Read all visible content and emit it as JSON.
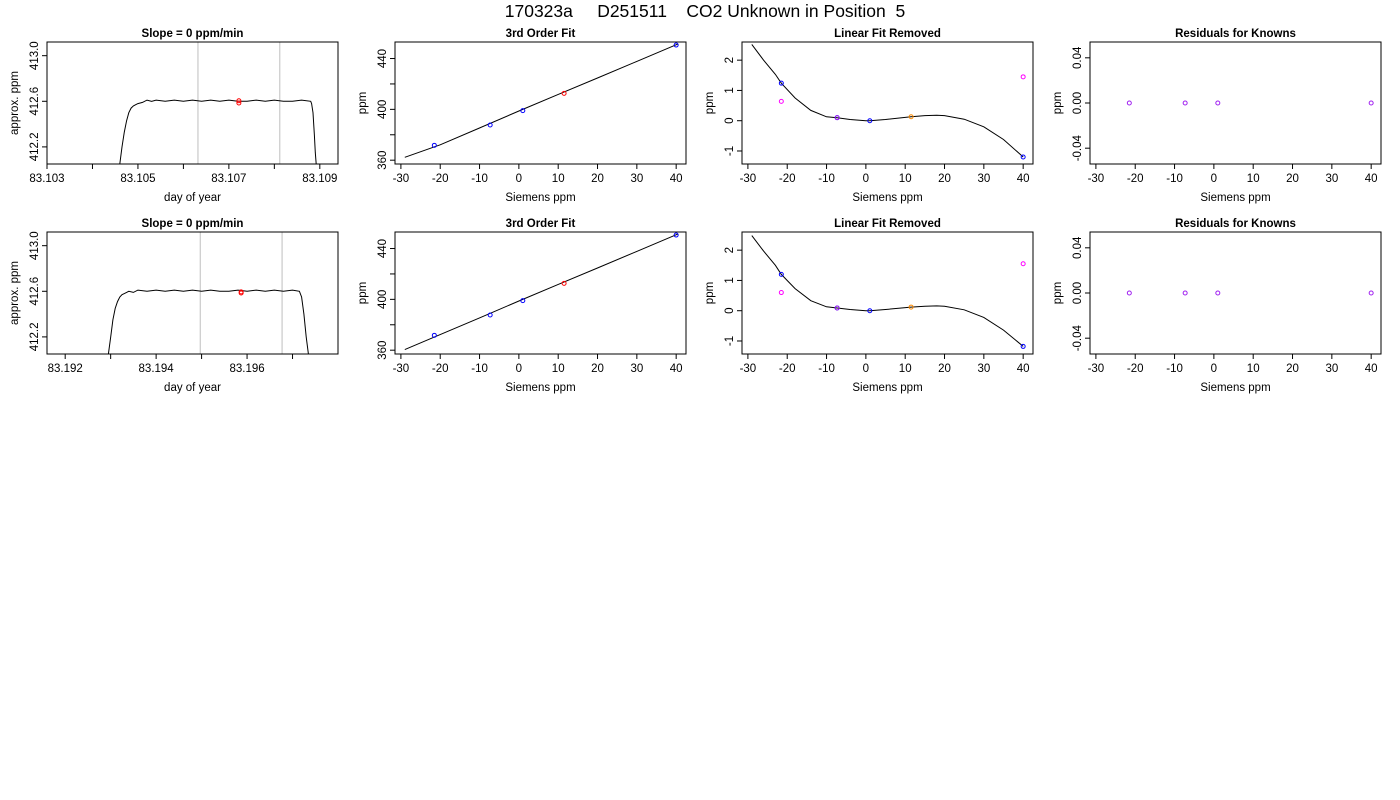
{
  "header": {
    "title": "170323a     D251511    CO2 Unknown in Position  5"
  },
  "colors": {
    "trace": "#000000",
    "flag_lines": "#bebebe",
    "unknown_point": "#ff0000",
    "known_points": "#0000ff",
    "residual_points": "#a020f0",
    "raw_points": "#ff00ff",
    "unknown_linear": "#ff8c00"
  },
  "chart_data": [
    {
      "type": "line",
      "row": 0,
      "col": 0,
      "title": "Slope =  0  ppm/min",
      "xlabel": "day of year",
      "ylabel": "approx. ppm",
      "xlim": [
        83.103,
        83.1094
      ],
      "ylim": [
        412.05,
        413.12
      ],
      "xticks": [
        83.103,
        83.104,
        83.105,
        83.106,
        83.107,
        83.108,
        83.109
      ],
      "xtick_labels": [
        "83.103",
        "",
        "83.105",
        "",
        "83.107",
        "",
        "83.109"
      ],
      "yticks": [
        412.2,
        412.6,
        413.0
      ],
      "ytick_labels": [
        "412.2",
        "412.6",
        "413.0"
      ],
      "vlines": [
        83.10632,
        83.10812
      ],
      "series": [
        {
          "x": [
            83.1046,
            83.10465,
            83.1047,
            83.10475,
            83.1048,
            83.10485,
            83.1049,
            83.10495,
            83.105,
            83.10505,
            83.1051,
            83.1052,
            83.1053,
            83.1054,
            83.1056,
            83.1058,
            83.106,
            83.1062,
            83.1064,
            83.1066,
            83.1068,
            83.107,
            83.1072,
            83.1074,
            83.1076,
            83.1078,
            83.108,
            83.1082,
            83.1084,
            83.1086,
            83.1088,
            83.10882,
            83.10885,
            83.10888,
            83.1089,
            83.10892
          ],
          "y": [
            412.05,
            412.2,
            412.33,
            412.43,
            412.5,
            412.54,
            412.56,
            412.57,
            412.58,
            412.585,
            412.59,
            412.61,
            412.6,
            412.61,
            412.6,
            412.61,
            412.6,
            412.61,
            412.6,
            412.61,
            412.6,
            412.61,
            412.6,
            412.6,
            412.61,
            412.6,
            412.61,
            412.6,
            412.6,
            412.61,
            412.6,
            412.58,
            412.5,
            412.3,
            412.15,
            412.05
          ]
        }
      ],
      "points": [
        {
          "x": 83.10722,
          "y": 412.605,
          "color": "unknown_point"
        },
        {
          "x": 83.10722,
          "y": 412.585,
          "color": "unknown_point"
        }
      ]
    },
    {
      "type": "scatter",
      "row": 0,
      "col": 1,
      "title": "3rd Order Fit",
      "xlabel": "Siemens ppm",
      "ylabel": "ppm",
      "xlim": [
        -31.5,
        42.5
      ],
      "ylim": [
        357,
        453
      ],
      "xticks": [
        -30,
        -20,
        -10,
        0,
        10,
        20,
        30,
        40
      ],
      "yticks": [
        360,
        380,
        400,
        420,
        440
      ],
      "ytick_labels": [
        "360",
        "",
        "400",
        "",
        "440"
      ],
      "fit_x": [
        -29,
        -20,
        -10,
        0,
        10,
        20,
        30,
        40.5
      ],
      "fit_y": [
        362.3,
        372.1,
        385.3,
        398.7,
        411.8,
        424.7,
        437.7,
        451.5
      ],
      "points": [
        {
          "x": -21.5,
          "y": 371.7,
          "color": "known_points"
        },
        {
          "x": -7.3,
          "y": 387.7,
          "color": "known_points"
        },
        {
          "x": 1.0,
          "y": 399.0,
          "color": "known_points"
        },
        {
          "x": 40.0,
          "y": 450.6,
          "color": "known_points"
        },
        {
          "x": 11.5,
          "y": 412.6,
          "color": "unknown_point"
        }
      ]
    },
    {
      "type": "scatter",
      "row": 0,
      "col": 2,
      "title": "Linear Fit Removed",
      "xlabel": "Siemens ppm",
      "ylabel": "ppm",
      "xlim": [
        -31.5,
        42.5
      ],
      "ylim": [
        -1.43,
        2.6
      ],
      "xticks": [
        -30,
        -20,
        -10,
        0,
        10,
        20,
        30,
        40
      ],
      "yticks": [
        -1,
        0,
        1,
        2
      ],
      "fit_x": [
        -29,
        -26,
        -23,
        -21.5,
        -18,
        -14,
        -10,
        -7.3,
        -4,
        0,
        1,
        5,
        11.5,
        15,
        18,
        20,
        25,
        30,
        35,
        40
      ],
      "fit_y": [
        2.52,
        2.0,
        1.53,
        1.24,
        0.75,
        0.34,
        0.13,
        0.1,
        0.04,
        0.0,
        0.0,
        0.04,
        0.13,
        0.17,
        0.18,
        0.17,
        0.05,
        -0.2,
        -0.62,
        -1.2
      ],
      "points": [
        {
          "x": -21.5,
          "y": 1.24,
          "color": "known_points"
        },
        {
          "x": -7.3,
          "y": 0.1,
          "color": "known_points"
        },
        {
          "x": 1.0,
          "y": 0.0,
          "color": "known_points"
        },
        {
          "x": 40.0,
          "y": -1.2,
          "color": "known_points"
        },
        {
          "x": -7.3,
          "y": 0.1,
          "color": "residual_points"
        },
        {
          "x": -21.5,
          "y": 0.64,
          "color": "raw_points"
        },
        {
          "x": 40.0,
          "y": 1.45,
          "color": "raw_points"
        },
        {
          "x": 11.5,
          "y": 0.13,
          "color": "unknown_linear"
        }
      ]
    },
    {
      "type": "scatter",
      "row": 0,
      "col": 3,
      "title": "Residuals for Knowns",
      "xlabel": "Siemens ppm",
      "ylabel": "ppm",
      "xlim": [
        -31.5,
        42.5
      ],
      "ylim": [
        -0.054,
        0.054
      ],
      "xticks": [
        -30,
        -20,
        -10,
        0,
        10,
        20,
        30,
        40
      ],
      "yticks": [
        -0.04,
        0.0,
        0.04
      ],
      "ytick_labels": [
        "-0.04",
        "0.00",
        "0.04"
      ],
      "points": [
        {
          "x": -21.5,
          "y": 0.0,
          "color": "residual_points"
        },
        {
          "x": -7.3,
          "y": 0.0,
          "color": "residual_points"
        },
        {
          "x": 1.0,
          "y": 0.0,
          "color": "residual_points"
        },
        {
          "x": 40.0,
          "y": 0.0,
          "color": "residual_points"
        }
      ]
    },
    {
      "type": "line",
      "row": 1,
      "col": 0,
      "title": "Slope =  0  ppm/min",
      "xlabel": "day of year",
      "ylabel": "approx. ppm",
      "xlim": [
        83.1916,
        83.198
      ],
      "ylim": [
        412.05,
        413.12
      ],
      "xticks": [
        83.192,
        83.193,
        83.194,
        83.195,
        83.196,
        83.197
      ],
      "xtick_labels": [
        "83.192",
        "",
        "83.194",
        "",
        "83.196",
        ""
      ],
      "yticks": [
        412.2,
        412.6,
        413.0
      ],
      "ytick_labels": [
        "412.2",
        "412.6",
        "413.0"
      ],
      "vlines": [
        83.19497,
        83.19677
      ],
      "series": [
        {
          "x": [
            83.19295,
            83.193,
            83.19305,
            83.1931,
            83.19315,
            83.1932,
            83.19325,
            83.1933,
            83.19335,
            83.1934,
            83.1935,
            83.1936,
            83.1938,
            83.194,
            83.1942,
            83.1944,
            83.1946,
            83.1948,
            83.195,
            83.1952,
            83.1954,
            83.1956,
            83.1958,
            83.196,
            83.1962,
            83.1964,
            83.1966,
            83.1968,
            83.197,
            83.19715,
            83.1972,
            83.19725,
            83.1973,
            83.19735
          ],
          "y": [
            412.05,
            412.2,
            412.35,
            412.45,
            412.51,
            412.55,
            412.57,
            412.58,
            412.59,
            412.6,
            412.59,
            412.61,
            412.6,
            412.61,
            412.6,
            412.61,
            412.6,
            412.61,
            412.6,
            412.61,
            412.6,
            412.6,
            412.61,
            412.6,
            412.61,
            412.6,
            412.61,
            412.6,
            412.61,
            412.6,
            412.55,
            412.4,
            412.2,
            412.05
          ]
        }
      ],
      "points": [
        {
          "x": 83.19587,
          "y": 412.595,
          "color": "unknown_point"
        },
        {
          "x": 83.19587,
          "y": 412.585,
          "color": "unknown_point"
        }
      ]
    },
    {
      "type": "scatter",
      "row": 1,
      "col": 1,
      "title": "3rd Order Fit",
      "xlabel": "Siemens ppm",
      "ylabel": "ppm",
      "xlim": [
        -31.5,
        42.5
      ],
      "ylim": [
        357,
        453
      ],
      "xticks": [
        -30,
        -20,
        -10,
        0,
        10,
        20,
        30,
        40
      ],
      "yticks": [
        360,
        380,
        400,
        420,
        440
      ],
      "ytick_labels": [
        "360",
        "",
        "400",
        "",
        "440"
      ],
      "fit_x": [
        -29,
        -20,
        -10,
        0,
        10,
        20,
        30,
        40.5
      ],
      "fit_y": [
        360.5,
        372.3,
        385.4,
        398.7,
        411.8,
        424.7,
        437.7,
        451.5
      ],
      "points": [
        {
          "x": -21.5,
          "y": 371.7,
          "color": "known_points"
        },
        {
          "x": -7.3,
          "y": 387.7,
          "color": "known_points"
        },
        {
          "x": 1.0,
          "y": 399.0,
          "color": "known_points"
        },
        {
          "x": 40.0,
          "y": 450.6,
          "color": "known_points"
        },
        {
          "x": 11.5,
          "y": 412.6,
          "color": "unknown_point"
        }
      ]
    },
    {
      "type": "scatter",
      "row": 1,
      "col": 2,
      "title": "Linear Fit Removed",
      "xlabel": "Siemens ppm",
      "ylabel": "ppm",
      "xlim": [
        -31.5,
        42.5
      ],
      "ylim": [
        -1.43,
        2.6
      ],
      "xticks": [
        -30,
        -20,
        -10,
        0,
        10,
        20,
        30,
        40
      ],
      "yticks": [
        -1,
        0,
        1,
        2
      ],
      "fit_x": [
        -29,
        -26,
        -23,
        -21.5,
        -18,
        -14,
        -10,
        -7.3,
        -4,
        0,
        1,
        5,
        11.5,
        15,
        18,
        20,
        25,
        30,
        35,
        40
      ],
      "fit_y": [
        2.48,
        1.97,
        1.5,
        1.2,
        0.73,
        0.33,
        0.13,
        0.09,
        0.04,
        0.0,
        0.0,
        0.04,
        0.12,
        0.15,
        0.16,
        0.15,
        0.03,
        -0.22,
        -0.64,
        -1.18
      ],
      "points": [
        {
          "x": -21.5,
          "y": 1.2,
          "color": "known_points"
        },
        {
          "x": -7.3,
          "y": 0.09,
          "color": "known_points"
        },
        {
          "x": 1.0,
          "y": 0.0,
          "color": "known_points"
        },
        {
          "x": 40.0,
          "y": -1.18,
          "color": "known_points"
        },
        {
          "x": -7.3,
          "y": 0.09,
          "color": "residual_points"
        },
        {
          "x": -21.5,
          "y": 0.6,
          "color": "raw_points"
        },
        {
          "x": 40.0,
          "y": 1.55,
          "color": "raw_points"
        },
        {
          "x": 11.5,
          "y": 0.12,
          "color": "unknown_linear"
        }
      ]
    },
    {
      "type": "scatter",
      "row": 1,
      "col": 3,
      "title": "Residuals for Knowns",
      "xlabel": "Siemens ppm",
      "ylabel": "ppm",
      "xlim": [
        -31.5,
        42.5
      ],
      "ylim": [
        -0.054,
        0.054
      ],
      "xticks": [
        -30,
        -20,
        -10,
        0,
        10,
        20,
        30,
        40
      ],
      "yticks": [
        -0.04,
        0.0,
        0.04
      ],
      "ytick_labels": [
        "-0.04",
        "0.00",
        "0.04"
      ],
      "points": [
        {
          "x": -21.5,
          "y": 0.0,
          "color": "residual_points"
        },
        {
          "x": -7.3,
          "y": 0.0,
          "color": "residual_points"
        },
        {
          "x": 1.0,
          "y": 0.0,
          "color": "residual_points"
        },
        {
          "x": 40.0,
          "y": 0.0,
          "color": "residual_points"
        }
      ]
    }
  ]
}
